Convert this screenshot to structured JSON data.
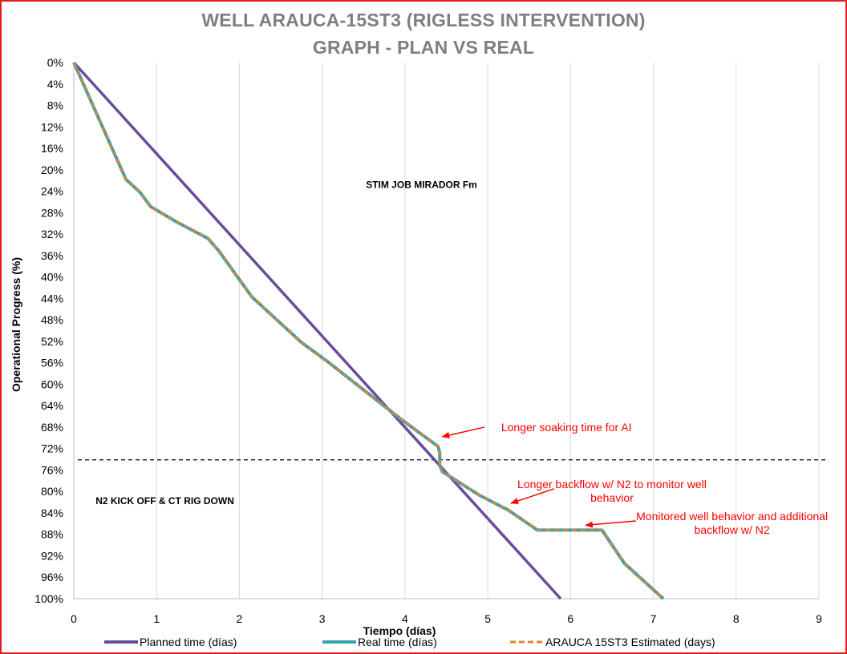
{
  "chart_data": {
    "type": "line",
    "title": "WELL ARAUCA-15ST3 (RIGLESS INTERVENTION)",
    "subtitle": "GRAPH  - PLAN VS REAL",
    "xlabel": "Tiempo (días)",
    "ylabel": "Operational Progress (%)",
    "xlim": [
      0,
      9
    ],
    "ylim": [
      0,
      100
    ],
    "y_inverted": true,
    "grid": "vertical",
    "legend": "bottom",
    "x_ticks": [
      "0",
      "1",
      "2",
      "3",
      "4",
      "5",
      "6",
      "7",
      "8",
      "9"
    ],
    "y_ticks": [
      "0%",
      "4%",
      "8%",
      "12%",
      "16%",
      "20%",
      "24%",
      "28%",
      "32%",
      "36%",
      "40%",
      "44%",
      "48%",
      "52%",
      "56%",
      "60%",
      "64%",
      "68%",
      "72%",
      "76%",
      "80%",
      "84%",
      "88%",
      "92%",
      "96%",
      "100%"
    ],
    "series": [
      {
        "name": "Planned time (días)",
        "color": "#6a4c9c",
        "style": "solid",
        "x": [
          0,
          5.88
        ],
        "y": [
          0,
          100
        ]
      },
      {
        "name": "Real time (días)",
        "color": "#3aa0b0",
        "style": "solid",
        "x": [
          0,
          0.63,
          0.8,
          0.93,
          1.25,
          1.62,
          1.75,
          2.15,
          2.75,
          3.05,
          3.95,
          4.4,
          4.42,
          4.42,
          4.45,
          4.9,
          5.25,
          5.6,
          6.38,
          6.65,
          7.12
        ],
        "y": [
          0,
          21.8,
          24.2,
          26.9,
          29.8,
          32.8,
          35.1,
          43.7,
          52.2,
          55.6,
          66.5,
          71.6,
          72.8,
          75.1,
          76.3,
          80.7,
          83.5,
          87.2,
          87.2,
          93.4,
          100
        ]
      },
      {
        "name": "ARAUCA 15ST3 Estimated (days)",
        "color": "#e8822a",
        "style": "dashed",
        "x": [
          0,
          0.63,
          0.8,
          0.93,
          1.25,
          1.62,
          1.75,
          2.15,
          2.75,
          3.05,
          3.95,
          4.4,
          4.42,
          4.42,
          4.45,
          4.9,
          5.25,
          5.6,
          6.38,
          6.65,
          7.12
        ],
        "y": [
          0,
          21.8,
          24.2,
          26.9,
          29.8,
          32.8,
          35.1,
          43.7,
          52.2,
          55.6,
          66.5,
          71.6,
          72.8,
          75.1,
          76.3,
          80.7,
          83.5,
          87.2,
          87.2,
          93.4,
          100
        ]
      }
    ],
    "reference_line": {
      "y": 74.1,
      "style": "dashed",
      "color": "#000000"
    },
    "annotations": [
      {
        "id": "stim",
        "text": "STIM JOB MIRADOR Fm",
        "x": 4.2,
        "y": 22.8,
        "color": "#000000",
        "style": "bold"
      },
      {
        "id": "n2",
        "text": "N2 KICK OFF & CT RIG DOWN",
        "x": 1.1,
        "y": 81.8,
        "color": "#000000",
        "style": "bold"
      },
      {
        "id": "soak",
        "text": "Longer soaking time for AI",
        "x": 5.95,
        "y": 68.0,
        "color": "#ff0000",
        "arrow_to": [
          4.45,
          69.8
        ]
      },
      {
        "id": "backflow1",
        "line1": "Longer backflow w/ N2 to monitor well",
        "line2": "behavior",
        "x": 6.5,
        "y": 78.6,
        "color": "#ff0000",
        "arrow_to": [
          5.28,
          82.2
        ]
      },
      {
        "id": "backflow2",
        "line1": "Monitored well behavior and additional",
        "line2": "backflow w/ N2",
        "x": 7.95,
        "y": 84.6,
        "color": "#ff0000",
        "arrow_to": [
          6.18,
          86.3
        ]
      }
    ]
  }
}
